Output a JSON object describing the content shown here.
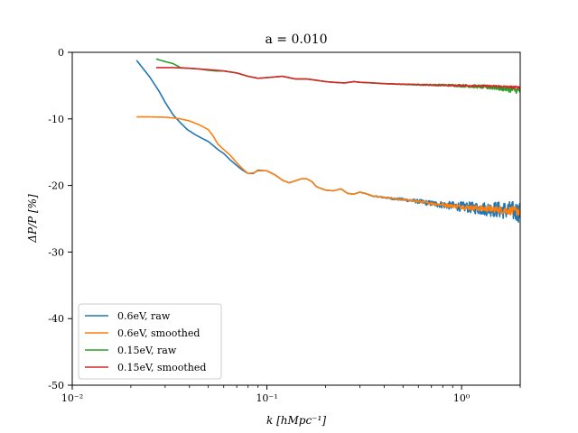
{
  "chart_data": {
    "type": "line",
    "title": "a = 0.010",
    "xlabel": "k [hMpc⁻¹]",
    "ylabel": "ΔP/P [%]",
    "xscale": "log",
    "xlim": [
      0.01,
      2.0
    ],
    "ylim": [
      -50,
      0
    ],
    "grid": false,
    "legend_position": "lower-left",
    "x_ticks": [
      {
        "value": 0.01,
        "label": "10⁻²"
      },
      {
        "value": 0.1,
        "label": "10⁻¹"
      },
      {
        "value": 1.0,
        "label": "10⁰"
      }
    ],
    "y_ticks": [
      {
        "value": 0,
        "label": "0"
      },
      {
        "value": -10,
        "label": "-10"
      },
      {
        "value": -20,
        "label": "-20"
      },
      {
        "value": -30,
        "label": "-30"
      },
      {
        "value": -40,
        "label": "-40"
      },
      {
        "value": -50,
        "label": "-50"
      }
    ],
    "series": [
      {
        "name": "0.6eV, raw",
        "color": "#1f77b4",
        "noise": 1.6,
        "x": [
          0.0214,
          0.025,
          0.028,
          0.03,
          0.033,
          0.036,
          0.039,
          0.043,
          0.047,
          0.05,
          0.053,
          0.056,
          0.06,
          0.065,
          0.07,
          0.075,
          0.08,
          0.085,
          0.09,
          0.1,
          0.11,
          0.12,
          0.13,
          0.14,
          0.15,
          0.16,
          0.17,
          0.18,
          0.2,
          0.22,
          0.24,
          0.26,
          0.28,
          0.3,
          0.32,
          0.35,
          0.4,
          0.45,
          0.5,
          0.6,
          0.7,
          0.8,
          1.0,
          1.2,
          1.5,
          1.8,
          2.0
        ],
        "y": [
          -1.2,
          -3.7,
          -5.9,
          -7.5,
          -9.4,
          -10.6,
          -11.6,
          -12.4,
          -13.0,
          -13.4,
          -14.0,
          -14.6,
          -15.2,
          -16.2,
          -17.0,
          -17.7,
          -18.2,
          -18.2,
          -17.7,
          -17.8,
          -18.4,
          -19.2,
          -19.6,
          -19.3,
          -19.0,
          -19.0,
          -19.4,
          -20.2,
          -20.7,
          -20.8,
          -20.5,
          -21.2,
          -21.3,
          -21.0,
          -21.2,
          -21.6,
          -21.8,
          -22.0,
          -22.1,
          -22.4,
          -22.7,
          -22.9,
          -23.2,
          -23.4,
          -23.6,
          -23.8,
          -24.0
        ]
      },
      {
        "name": "0.6eV, smoothed",
        "color": "#ff7f0e",
        "noise": 0.7,
        "x": [
          0.0214,
          0.025,
          0.03,
          0.033,
          0.036,
          0.04,
          0.045,
          0.05,
          0.053,
          0.056,
          0.06,
          0.065,
          0.07,
          0.075,
          0.08,
          0.085,
          0.09,
          0.1,
          0.11,
          0.12,
          0.13,
          0.14,
          0.15,
          0.16,
          0.17,
          0.18,
          0.2,
          0.22,
          0.24,
          0.26,
          0.28,
          0.3,
          0.32,
          0.35,
          0.4,
          0.45,
          0.5,
          0.6,
          0.7,
          0.8,
          1.0,
          1.2,
          1.5,
          1.8,
          2.0
        ],
        "y": [
          -9.7,
          -9.7,
          -9.75,
          -9.85,
          -10.0,
          -10.3,
          -10.9,
          -11.6,
          -12.6,
          -13.8,
          -14.6,
          -15.5,
          -16.6,
          -17.5,
          -18.2,
          -18.1,
          -17.8,
          -17.8,
          -18.4,
          -19.2,
          -19.6,
          -19.3,
          -19.0,
          -19.0,
          -19.4,
          -20.2,
          -20.7,
          -20.8,
          -20.5,
          -21.2,
          -21.3,
          -21.0,
          -21.2,
          -21.6,
          -21.8,
          -22.0,
          -22.1,
          -22.4,
          -22.7,
          -22.9,
          -23.2,
          -23.4,
          -23.6,
          -23.8,
          -23.9
        ]
      },
      {
        "name": "0.15eV, raw",
        "color": "#2ca02c",
        "noise": 0.45,
        "x": [
          0.027,
          0.03,
          0.033,
          0.036,
          0.04,
          0.045,
          0.05,
          0.055,
          0.06,
          0.07,
          0.08,
          0.09,
          0.1,
          0.12,
          0.14,
          0.16,
          0.18,
          0.2,
          0.22,
          0.25,
          0.28,
          0.3,
          0.35,
          0.4,
          0.5,
          0.7,
          1.0,
          1.5,
          2.0
        ],
        "y": [
          -1.0,
          -1.4,
          -1.7,
          -2.3,
          -2.4,
          -2.5,
          -2.7,
          -2.8,
          -2.8,
          -3.1,
          -3.6,
          -3.9,
          -3.8,
          -3.6,
          -4.0,
          -4.0,
          -4.2,
          -4.4,
          -4.5,
          -4.6,
          -4.4,
          -4.5,
          -4.6,
          -4.7,
          -4.8,
          -4.9,
          -5.0,
          -5.3,
          -5.8
        ]
      },
      {
        "name": "0.15eV, smoothed",
        "color": "#d62728",
        "noise": 0.2,
        "x": [
          0.027,
          0.03,
          0.033,
          0.036,
          0.04,
          0.045,
          0.05,
          0.055,
          0.06,
          0.07,
          0.08,
          0.09,
          0.1,
          0.12,
          0.14,
          0.16,
          0.18,
          0.2,
          0.22,
          0.25,
          0.28,
          0.3,
          0.35,
          0.4,
          0.5,
          0.7,
          1.0,
          1.5,
          2.0
        ],
        "y": [
          -2.3,
          -2.3,
          -2.3,
          -2.35,
          -2.4,
          -2.5,
          -2.6,
          -2.7,
          -2.8,
          -3.1,
          -3.6,
          -3.9,
          -3.8,
          -3.6,
          -4.0,
          -4.0,
          -4.2,
          -4.4,
          -4.5,
          -4.6,
          -4.4,
          -4.5,
          -4.6,
          -4.7,
          -4.8,
          -4.9,
          -5.0,
          -5.1,
          -5.3
        ]
      }
    ]
  }
}
